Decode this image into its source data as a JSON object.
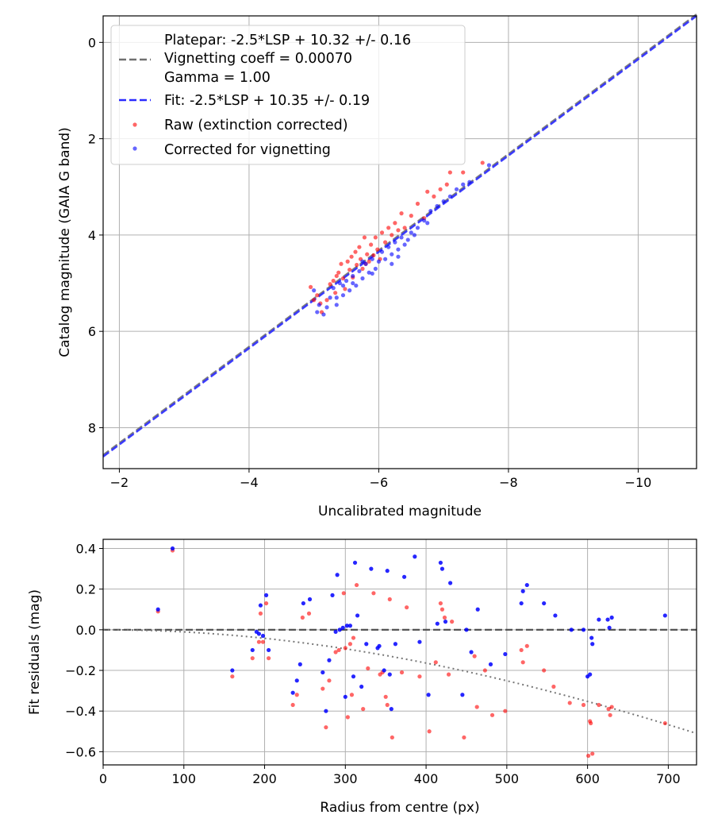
{
  "chart_data": [
    {
      "type": "line+scatter",
      "title": "",
      "xlabel": "Uncalibrated magnitude",
      "ylabel": "Catalog magnitude (GAIA G band)",
      "xlim": [
        -1.75,
        -10.9
      ],
      "ylim": [
        8.85,
        -0.55
      ],
      "xticks": [
        -2,
        -4,
        -6,
        -8,
        -10
      ],
      "yticks": [
        0,
        2,
        4,
        6,
        8
      ],
      "xtick_labels": [
        "−2",
        "−4",
        "−6",
        "−8",
        "−10"
      ],
      "ytick_labels": [
        "0",
        "2",
        "4",
        "6",
        "8"
      ],
      "grid": true,
      "legend_position": "top-left",
      "colors": {
        "raw": "#ff0000",
        "corrected": "#0000ff",
        "platepar_line": "#707070",
        "fit_line": "#2b2bff"
      },
      "legend": {
        "platepar": "Platepar: -2.5*LSP + 10.32 +/- 0.16",
        "vignetting": "Vignetting coeff = 0.00070",
        "gamma": "Gamma = 1.00",
        "fit": "Fit: -2.5*LSP + 10.35 +/- 0.19",
        "raw": "Raw (extinction corrected)",
        "corrected": "Corrected for vignetting"
      },
      "lines": [
        {
          "name": "Platepar",
          "slope": 1.0,
          "intercept": 10.32,
          "style": "dashed"
        },
        {
          "name": "Fit",
          "slope": 1.0,
          "intercept": 10.35,
          "style": "dashed"
        }
      ],
      "series": [
        {
          "name": "Raw (extinction corrected)",
          "points": [
            [
              -4.95,
              5.08
            ],
            [
              -5.05,
              5.25
            ],
            [
              -5.1,
              5.42
            ],
            [
              -5.12,
              5.6
            ],
            [
              -5.2,
              5.35
            ],
            [
              -5.25,
              5.02
            ],
            [
              -5.3,
              4.95
            ],
            [
              -5.33,
              5.2
            ],
            [
              -5.38,
              4.78
            ],
            [
              -5.42,
              4.6
            ],
            [
              -5.45,
              4.9
            ],
            [
              -5.48,
              5.12
            ],
            [
              -5.52,
              4.55
            ],
            [
              -5.55,
              4.72
            ],
            [
              -5.58,
              4.45
            ],
            [
              -5.6,
              4.88
            ],
            [
              -5.64,
              4.35
            ],
            [
              -5.66,
              4.62
            ],
            [
              -5.7,
              4.25
            ],
            [
              -5.72,
              4.5
            ],
            [
              -5.75,
              4.7
            ],
            [
              -5.78,
              4.05
            ],
            [
              -5.82,
              4.4
            ],
            [
              -5.85,
              4.55
            ],
            [
              -5.88,
              4.2
            ],
            [
              -5.92,
              4.42
            ],
            [
              -5.95,
              4.05
            ],
            [
              -5.98,
              4.3
            ],
            [
              -6.02,
              4.5
            ],
            [
              -6.05,
              3.95
            ],
            [
              -6.1,
              4.15
            ],
            [
              -6.15,
              3.85
            ],
            [
              -6.2,
              4.0
            ],
            [
              -6.25,
              3.75
            ],
            [
              -6.3,
              3.9
            ],
            [
              -6.35,
              3.55
            ],
            [
              -6.4,
              3.85
            ],
            [
              -6.5,
              3.6
            ],
            [
              -6.6,
              3.35
            ],
            [
              -6.7,
              3.65
            ],
            [
              -6.75,
              3.1
            ],
            [
              -6.85,
              3.2
            ],
            [
              -6.95,
              3.05
            ],
            [
              -7.05,
              2.95
            ],
            [
              -7.1,
              2.7
            ],
            [
              -7.3,
              2.7
            ],
            [
              -7.6,
              2.5
            ],
            [
              -5.0,
              5.35
            ],
            [
              -5.35,
              4.85
            ],
            [
              -5.8,
              4.6
            ]
          ]
        },
        {
          "name": "Corrected for vignetting",
          "points": [
            [
              -5.0,
              5.15
            ],
            [
              -5.08,
              5.45
            ],
            [
              -5.15,
              5.65
            ],
            [
              -5.2,
              5.5
            ],
            [
              -5.25,
              5.3
            ],
            [
              -5.3,
              5.1
            ],
            [
              -5.35,
              5.3
            ],
            [
              -5.4,
              5.0
            ],
            [
              -5.45,
              5.25
            ],
            [
              -5.5,
              4.95
            ],
            [
              -5.55,
              5.15
            ],
            [
              -5.6,
              4.85
            ],
            [
              -5.65,
              5.05
            ],
            [
              -5.7,
              4.75
            ],
            [
              -5.75,
              4.9
            ],
            [
              -5.8,
              4.6
            ],
            [
              -5.85,
              4.78
            ],
            [
              -5.9,
              4.5
            ],
            [
              -5.95,
              4.7
            ],
            [
              -6.0,
              4.55
            ],
            [
              -6.05,
              4.35
            ],
            [
              -6.1,
              4.5
            ],
            [
              -6.15,
              4.25
            ],
            [
              -6.2,
              4.4
            ],
            [
              -6.25,
              4.15
            ],
            [
              -6.3,
              4.3
            ],
            [
              -6.35,
              4.05
            ],
            [
              -6.4,
              4.2
            ],
            [
              -6.5,
              3.95
            ],
            [
              -6.6,
              3.85
            ],
            [
              -6.7,
              3.7
            ],
            [
              -6.8,
              3.5
            ],
            [
              -6.9,
              3.4
            ],
            [
              -7.0,
              3.3
            ],
            [
              -7.1,
              3.2
            ],
            [
              -7.3,
              2.95
            ],
            [
              -7.4,
              2.9
            ],
            [
              -7.7,
              2.55
            ],
            [
              -5.05,
              5.6
            ],
            [
              -5.6,
              5.0
            ],
            [
              -5.9,
              4.8
            ],
            [
              -6.2,
              4.6
            ],
            [
              -6.55,
              4.0
            ],
            [
              -6.3,
              4.45
            ],
            [
              -5.45,
              5.05
            ],
            [
              -5.75,
              4.55
            ],
            [
              -6.45,
              4.1
            ],
            [
              -6.75,
              3.75
            ],
            [
              -7.2,
              3.05
            ],
            [
              -5.35,
              5.45
            ]
          ]
        }
      ]
    },
    {
      "type": "scatter",
      "title": "",
      "xlabel": "Radius from centre (px)",
      "ylabel": "Fit residuals (mag)",
      "xlim": [
        0,
        735
      ],
      "ylim": [
        -0.665,
        0.445
      ],
      "xticks": [
        0,
        100,
        200,
        300,
        400,
        500,
        600,
        700
      ],
      "yticks": [
        0.4,
        0.2,
        0.0,
        -0.2,
        -0.4,
        -0.6
      ],
      "xtick_labels": [
        "0",
        "100",
        "200",
        "300",
        "400",
        "500",
        "600",
        "700"
      ],
      "ytick_labels": [
        "0.4",
        "0.2",
        "0.0",
        "−0.2",
        "−0.4",
        "−0.6"
      ],
      "grid": true,
      "zero_line": 0.0,
      "vignetting_curve": {
        "coefficient": 0.0007,
        "x_end": 735
      },
      "series": [
        {
          "name": "Raw (extinction corrected)",
          "points": [
            [
              68,
              0.09
            ],
            [
              86,
              0.39
            ],
            [
              160,
              -0.23
            ],
            [
              185,
              -0.14
            ],
            [
              193,
              -0.06
            ],
            [
              195,
              0.08
            ],
            [
              198,
              -0.06
            ],
            [
              202,
              0.13
            ],
            [
              205,
              -0.14
            ],
            [
              235,
              -0.37
            ],
            [
              240,
              -0.32
            ],
            [
              247,
              0.06
            ],
            [
              255,
              0.08
            ],
            [
              272,
              -0.29
            ],
            [
              276,
              -0.48
            ],
            [
              280,
              -0.25
            ],
            [
              288,
              -0.11
            ],
            [
              292,
              -0.1
            ],
            [
              298,
              0.18
            ],
            [
              300,
              -0.09
            ],
            [
              303,
              -0.43
            ],
            [
              306,
              -0.07
            ],
            [
              308,
              -0.32
            ],
            [
              310,
              -0.04
            ],
            [
              314,
              0.22
            ],
            [
              322,
              -0.39
            ],
            [
              328,
              -0.19
            ],
            [
              335,
              0.18
            ],
            [
              343,
              -0.22
            ],
            [
              346,
              -0.21
            ],
            [
              350,
              -0.33
            ],
            [
              352,
              -0.37
            ],
            [
              355,
              0.15
            ],
            [
              358,
              -0.53
            ],
            [
              370,
              -0.21
            ],
            [
              376,
              0.11
            ],
            [
              392,
              -0.23
            ],
            [
              404,
              -0.5
            ],
            [
              412,
              -0.16
            ],
            [
              418,
              0.13
            ],
            [
              420,
              0.1
            ],
            [
              423,
              0.06
            ],
            [
              428,
              -0.22
            ],
            [
              432,
              0.04
            ],
            [
              447,
              -0.53
            ],
            [
              460,
              -0.13
            ],
            [
              463,
              -0.38
            ],
            [
              473,
              -0.2
            ],
            [
              482,
              -0.42
            ],
            [
              498,
              -0.4
            ],
            [
              518,
              -0.1
            ],
            [
              520,
              -0.16
            ],
            [
              525,
              -0.08
            ],
            [
              546,
              -0.2
            ],
            [
              558,
              -0.28
            ],
            [
              578,
              -0.36
            ],
            [
              595,
              -0.37
            ],
            [
              601,
              -0.62
            ],
            [
              603,
              -0.45
            ],
            [
              604,
              -0.46
            ],
            [
              606,
              -0.61
            ],
            [
              614,
              -0.37
            ],
            [
              626,
              -0.39
            ],
            [
              628,
              -0.42
            ],
            [
              630,
              -0.38
            ],
            [
              696,
              -0.46
            ]
          ]
        },
        {
          "name": "Corrected for vignetting",
          "points": [
            [
              68,
              0.1
            ],
            [
              86,
              0.4
            ],
            [
              160,
              -0.2
            ],
            [
              185,
              -0.1
            ],
            [
              190,
              -0.01
            ],
            [
              193,
              -0.02
            ],
            [
              195,
              0.12
            ],
            [
              198,
              -0.03
            ],
            [
              202,
              0.17
            ],
            [
              205,
              -0.1
            ],
            [
              235,
              -0.31
            ],
            [
              240,
              -0.25
            ],
            [
              244,
              -0.17
            ],
            [
              248,
              0.13
            ],
            [
              256,
              0.15
            ],
            [
              272,
              -0.21
            ],
            [
              276,
              -0.4
            ],
            [
              280,
              -0.15
            ],
            [
              284,
              0.17
            ],
            [
              288,
              -0.01
            ],
            [
              290,
              0.27
            ],
            [
              293,
              0.0
            ],
            [
              297,
              0.01
            ],
            [
              300,
              -0.33
            ],
            [
              302,
              0.02
            ],
            [
              306,
              0.02
            ],
            [
              310,
              -0.23
            ],
            [
              312,
              0.33
            ],
            [
              315,
              0.07
            ],
            [
              320,
              -0.28
            ],
            [
              326,
              -0.07
            ],
            [
              332,
              0.3
            ],
            [
              340,
              -0.09
            ],
            [
              342,
              -0.08
            ],
            [
              348,
              -0.2
            ],
            [
              352,
              0.29
            ],
            [
              355,
              -0.22
            ],
            [
              357,
              -0.39
            ],
            [
              362,
              -0.07
            ],
            [
              373,
              0.26
            ],
            [
              386,
              0.36
            ],
            [
              392,
              -0.06
            ],
            [
              403,
              -0.32
            ],
            [
              414,
              0.03
            ],
            [
              418,
              0.33
            ],
            [
              420,
              0.3
            ],
            [
              424,
              0.04
            ],
            [
              430,
              0.23
            ],
            [
              445,
              -0.32
            ],
            [
              450,
              0.0
            ],
            [
              456,
              -0.11
            ],
            [
              464,
              0.1
            ],
            [
              480,
              -0.17
            ],
            [
              498,
              -0.12
            ],
            [
              518,
              0.13
            ],
            [
              520,
              0.19
            ],
            [
              525,
              0.22
            ],
            [
              546,
              0.13
            ],
            [
              560,
              0.07
            ],
            [
              580,
              0.0
            ],
            [
              595,
              0.0
            ],
            [
              600,
              -0.23
            ],
            [
              603,
              -0.22
            ],
            [
              605,
              -0.04
            ],
            [
              606,
              -0.07
            ],
            [
              614,
              0.05
            ],
            [
              625,
              0.05
            ],
            [
              627,
              0.01
            ],
            [
              630,
              0.06
            ],
            [
              696,
              0.07
            ]
          ]
        }
      ]
    }
  ]
}
